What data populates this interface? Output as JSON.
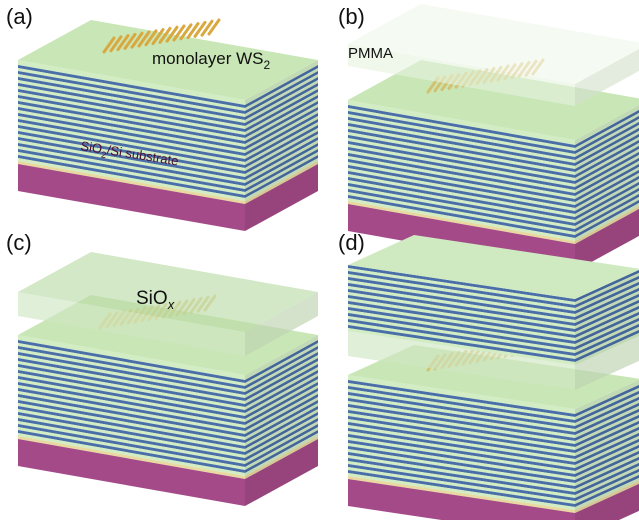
{
  "panels": [
    {
      "label": "(a)",
      "annotations": [
        [
          "monolayer WS",
          "2"
        ],
        [
          "SiO",
          "2",
          "/Si substrate"
        ]
      ]
    },
    {
      "label": "(b)",
      "annotations": [
        [
          "PMMA"
        ]
      ]
    },
    {
      "label": "(c)",
      "annotations": [
        [
          "SiO",
          "x"
        ]
      ]
    },
    {
      "label": "(d)",
      "annotations": []
    }
  ]
}
